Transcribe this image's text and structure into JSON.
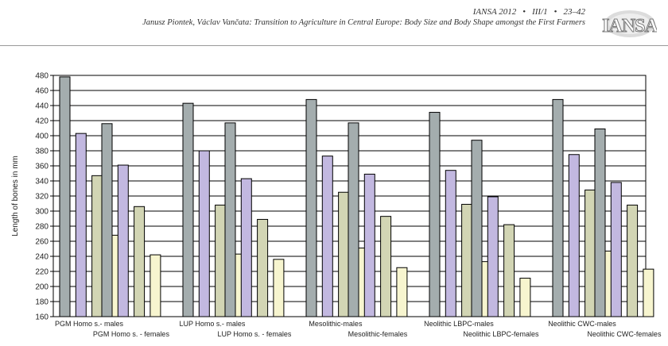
{
  "header": {
    "journal": "IANSA 2012",
    "volume": "III/1",
    "pages": "23–42",
    "title": "Janusz Piontek, Václav Vančata: Transition to Agriculture in Central Europe: Body Size and Body Shape amongst the First Farmers",
    "logo_text": "IANSA"
  },
  "chart_data": {
    "type": "bar",
    "title": "",
    "xlabel": "",
    "ylabel": "Length of bones in mm",
    "ylim": [
      160,
      480
    ],
    "ytick_step": 20,
    "grid": true,
    "categories": [
      "PGM Homo s.- males",
      "PGM Homo s. - females",
      "LUP Homo s.- males",
      "LUP Homo s. - females",
      "Mesolithic-males",
      "Mesolithic-females",
      "Neolithic LBPC-males",
      "Neolithic LBPC-females",
      "Neolithic CWC-males",
      "Neolithic CWC-females"
    ],
    "series": [
      {
        "values": [
          478,
          416,
          443,
          417,
          448,
          417,
          431,
          394,
          448,
          409
        ],
        "color": "#a4adae"
      },
      {
        "values": [
          403,
          361,
          380,
          343,
          373,
          349,
          354,
          319,
          375,
          338
        ],
        "color": "#c2b8e0"
      },
      {
        "values": [
          347,
          306,
          308,
          289,
          325,
          293,
          309,
          282,
          328,
          308
        ],
        "color": "#d2d5b4"
      },
      {
        "values": [
          268,
          242,
          243,
          236,
          251,
          225,
          233,
          211,
          247,
          223
        ],
        "color": "#f7f5cf"
      }
    ]
  }
}
